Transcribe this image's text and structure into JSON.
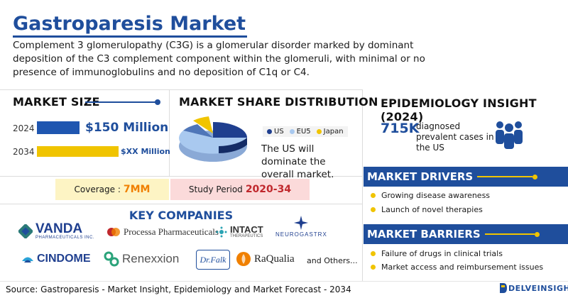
{
  "header": {
    "title": "Gastroparesis Market",
    "description": "Complement 3 glomerulopathy (C3G) is a glomerular disorder marked by dominant deposition of the C3 complement component within the glomeruli, with minimal or no presence of immunoglobulins and no deposition of C1q or C4."
  },
  "market_size": {
    "heading": "MARKET SIZE",
    "rows": [
      {
        "year": "2024",
        "value": "$150 Million"
      },
      {
        "year": "2034",
        "value": "$XX Million"
      }
    ]
  },
  "share": {
    "heading": "MARKET SHARE DISTRIBUTION",
    "legend": [
      "US",
      "EU5",
      "Japan"
    ],
    "note": "The US will dominate the overall market."
  },
  "coverage": {
    "label": "Coverage :",
    "value": "7MM"
  },
  "study_period": {
    "label": "Study Period",
    "value": "2020-34"
  },
  "companies": {
    "heading": "KEY COMPANIES",
    "names": [
      "VANDA",
      "PHARMACEUTICALS INC.",
      "Processa Pharmaceuticals",
      "INTACT",
      "THERAPEUTICS",
      "NEUROGASTRX",
      "CINDOME",
      "Renexxion",
      "Dr.Falk",
      "RaQualia",
      "and Others..."
    ]
  },
  "epidemiology": {
    "heading": "EPIDEMIOLOGY INSIGHT (2024)",
    "number": "715K",
    "text": "diagnosed prevalent cases in the US"
  },
  "drivers": {
    "heading": "MARKET DRIVERS",
    "items": [
      "Growing disease awareness",
      "Launch of novel therapies"
    ]
  },
  "barriers": {
    "heading": "MARKET BARRIERS",
    "items": [
      "Failure of drugs in clinical trials",
      "Market access and reimbursement issues"
    ]
  },
  "footer": {
    "source": "Source: Gastroparesis - Market Insight, Epidemiology and Market Forecast - 2034",
    "brand": "DELVEINSIGHT"
  },
  "colors": {
    "primary_blue": "#1f4e9c",
    "accent_yellow": "#f0c400",
    "pie_us": "#1f3f8f",
    "pie_eu5": "#a9c9ef",
    "pie_japan": "#f0c400"
  }
}
